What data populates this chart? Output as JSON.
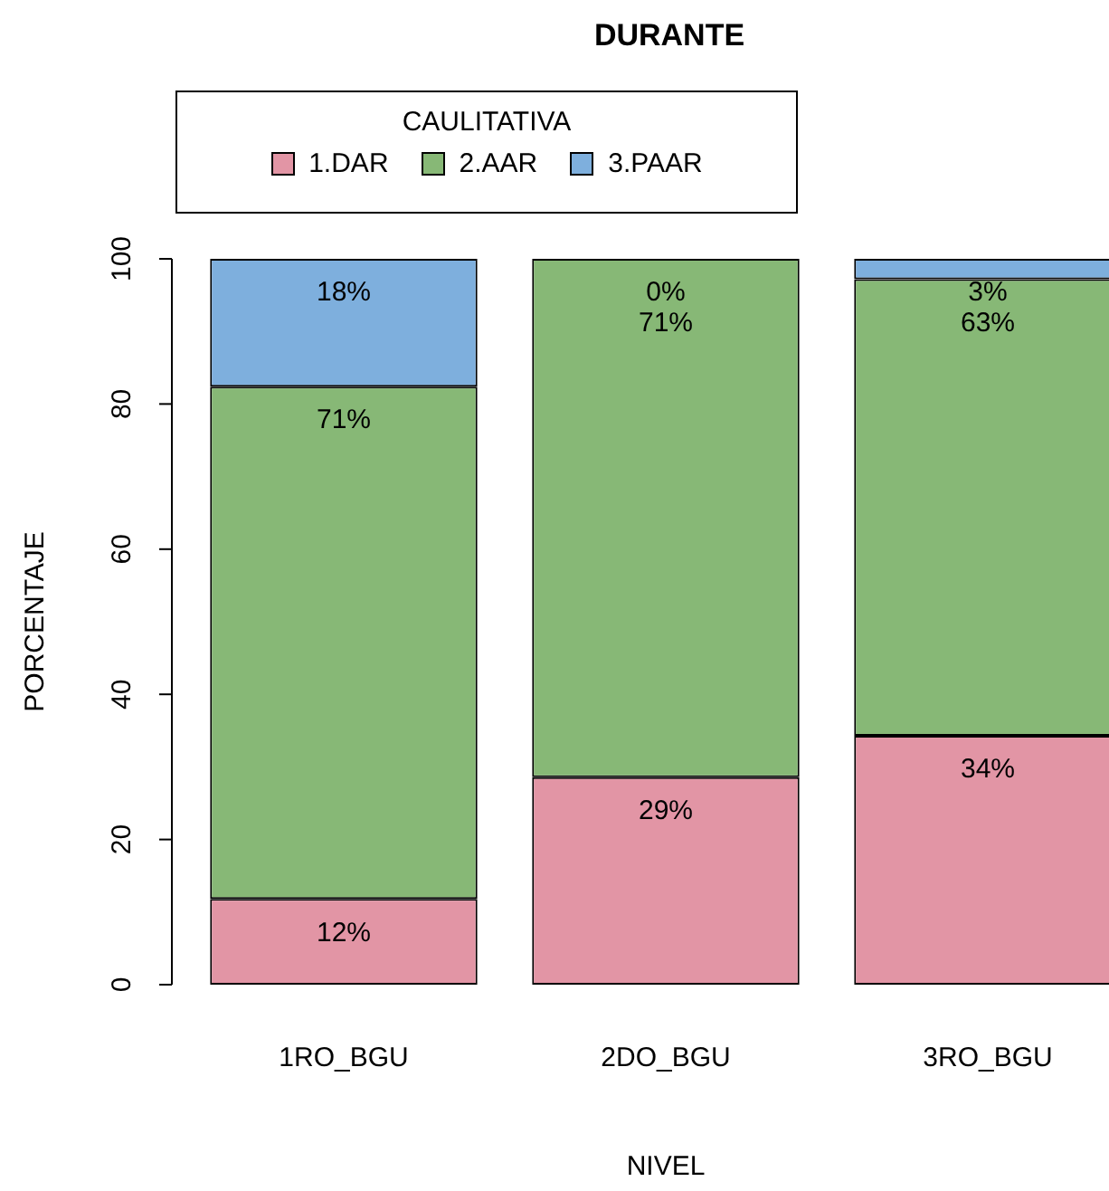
{
  "chart_data": {
    "type": "bar",
    "title": "DURANTE",
    "xlabel": "NIVEL",
    "ylabel": "PORCENTAJE",
    "legend_title": "CAULITATIVA",
    "legend": "top",
    "stacked": true,
    "categories": [
      "1RO_BGU",
      "2DO_BGU",
      "3RO_BGU"
    ],
    "series": [
      {
        "name": "1.DAR",
        "color": "#e295a5",
        "values": [
          11.8,
          28.6,
          34.3
        ],
        "value_labels": [
          "12%",
          "29%",
          "34%"
        ]
      },
      {
        "name": "2.AAR",
        "color": "#87b876",
        "values": [
          70.6,
          71.4,
          62.9
        ],
        "value_labels": [
          "71%",
          "71%",
          "63%"
        ]
      },
      {
        "name": "3.PAAR",
        "color": "#7eafdd",
        "values": [
          17.6,
          0,
          2.8
        ],
        "value_labels": [
          "18%",
          "0%",
          "3%"
        ]
      }
    ],
    "ylim": [
      0,
      100
    ],
    "yticks": [
      0,
      20,
      40,
      60,
      80,
      100
    ]
  }
}
